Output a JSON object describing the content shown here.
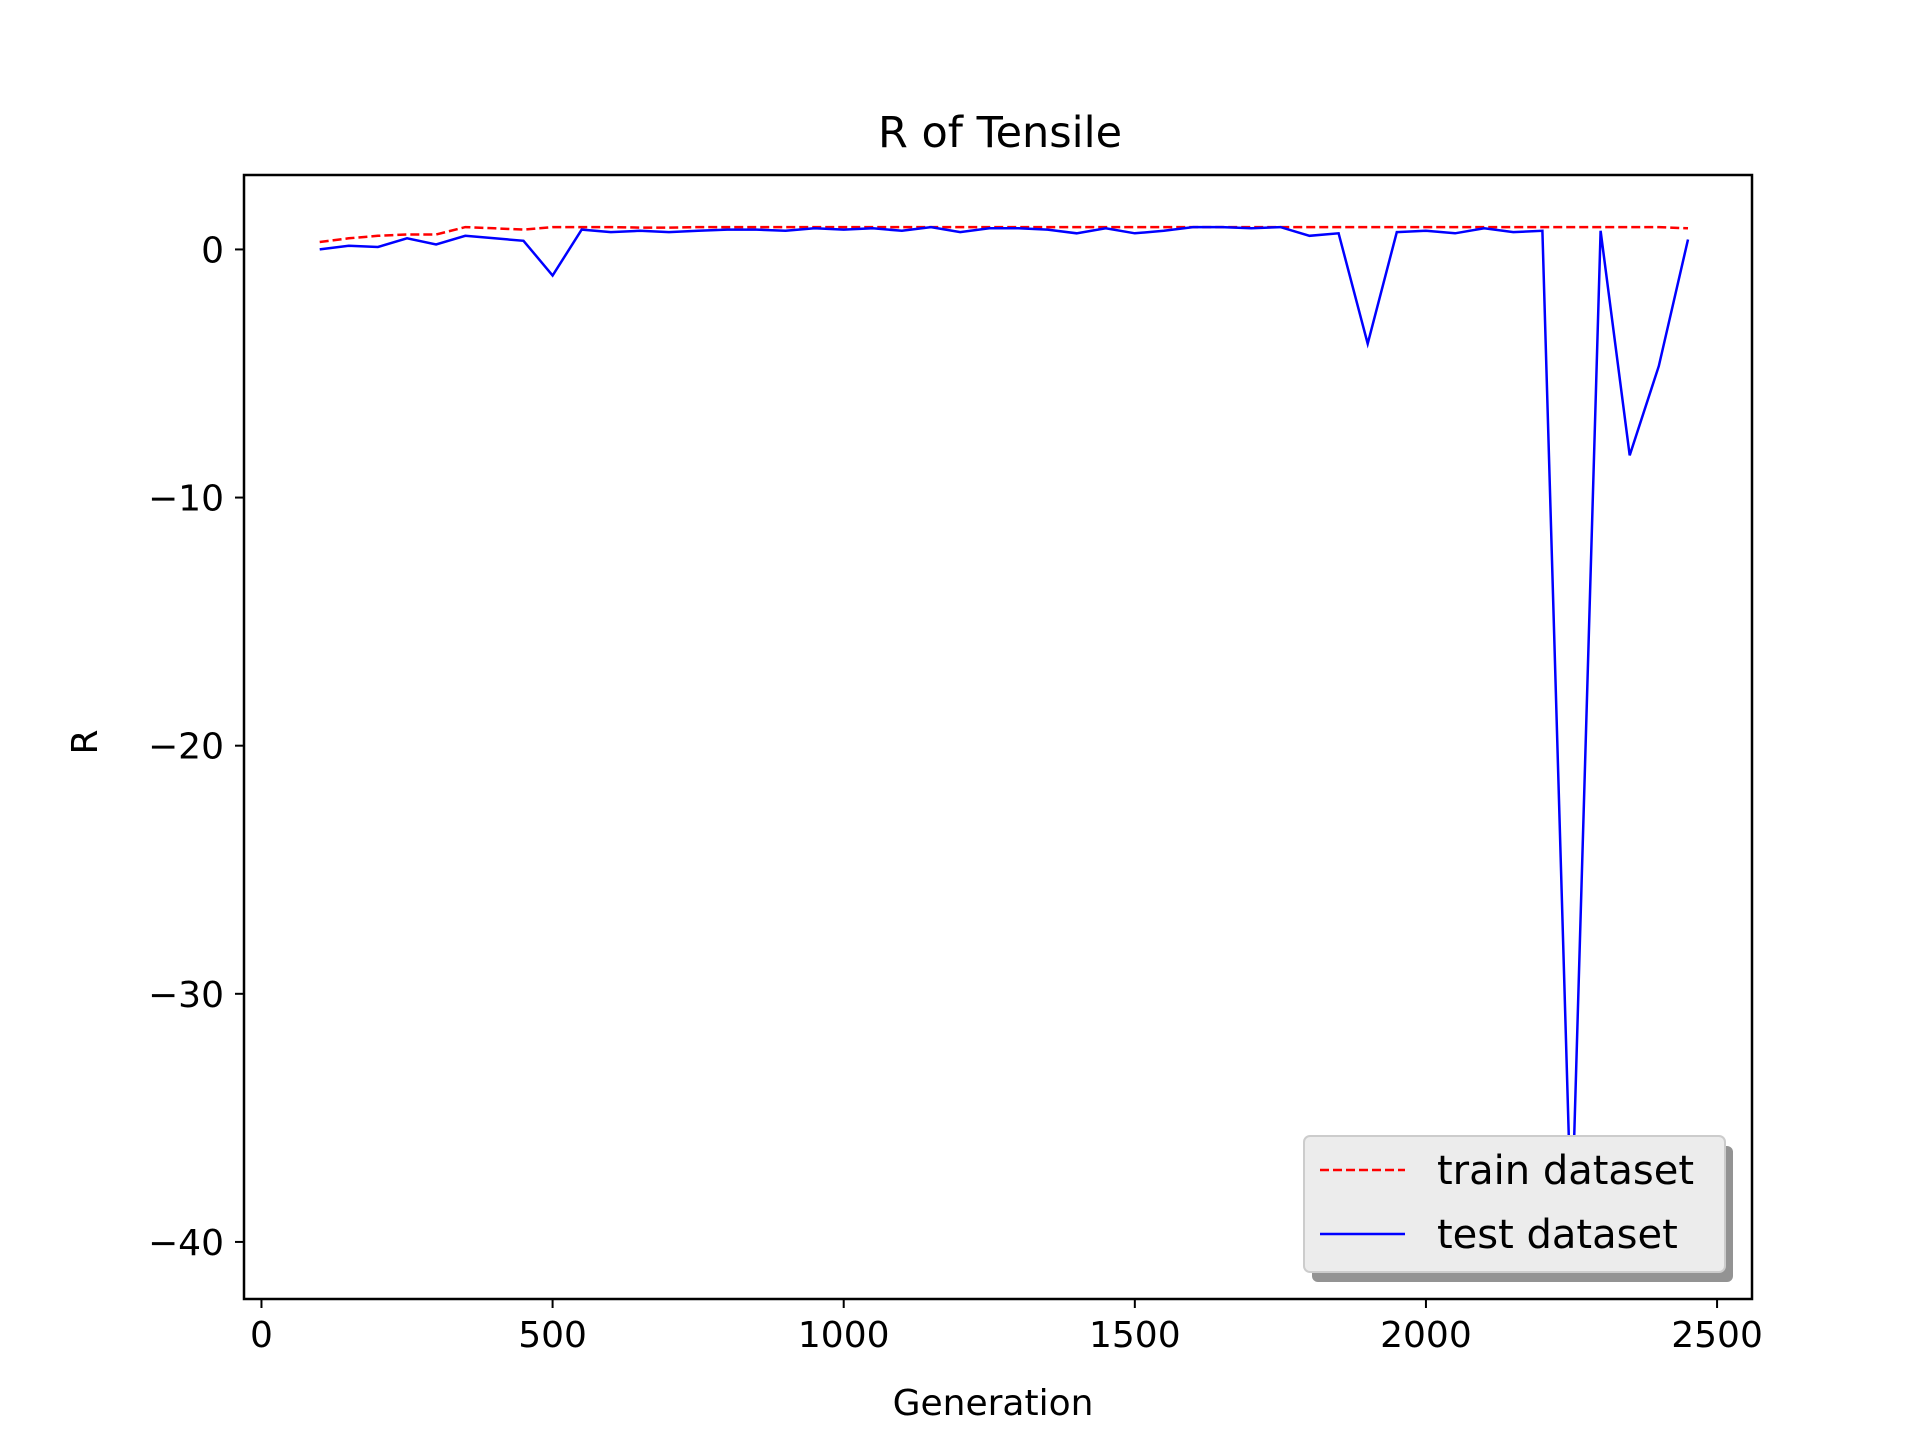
{
  "chart_data": {
    "type": "line",
    "title": "R of Tensile",
    "xlabel": "Generation",
    "ylabel": "R",
    "xlim": [
      -30,
      2560
    ],
    "ylim": [
      -42.3,
      3.0
    ],
    "xticks": [
      0,
      500,
      1000,
      1500,
      2000,
      2500
    ],
    "yticks": [
      0,
      -10,
      -20,
      -30,
      -40
    ],
    "xtick_labels": [
      "0",
      "500",
      "1000",
      "1500",
      "2000",
      "2500"
    ],
    "ytick_labels": [
      "0",
      "−10",
      "−20",
      "−30",
      "−40"
    ],
    "grid": false,
    "legend_position": "lower-right",
    "x": [
      100,
      150,
      200,
      250,
      300,
      350,
      400,
      450,
      500,
      550,
      600,
      650,
      700,
      750,
      800,
      850,
      900,
      950,
      1000,
      1050,
      1100,
      1150,
      1200,
      1250,
      1300,
      1350,
      1400,
      1450,
      1500,
      1550,
      1600,
      1650,
      1700,
      1750,
      1800,
      1850,
      1900,
      1950,
      2000,
      2050,
      2100,
      2150,
      2200,
      2250,
      2300,
      2350,
      2400,
      2450
    ],
    "series": [
      {
        "name": "train dataset",
        "color": "#ff0000",
        "dash": "dashed",
        "values": [
          0.3,
          0.45,
          0.55,
          0.6,
          0.6,
          0.9,
          0.85,
          0.8,
          0.9,
          0.9,
          0.9,
          0.88,
          0.88,
          0.9,
          0.9,
          0.9,
          0.9,
          0.9,
          0.9,
          0.9,
          0.9,
          0.9,
          0.9,
          0.9,
          0.9,
          0.9,
          0.9,
          0.9,
          0.9,
          0.9,
          0.9,
          0.9,
          0.9,
          0.9,
          0.9,
          0.9,
          0.9,
          0.9,
          0.9,
          0.9,
          0.9,
          0.9,
          0.9,
          0.9,
          0.9,
          0.9,
          0.9,
          0.85
        ]
      },
      {
        "name": "test dataset",
        "color": "#0000ff",
        "dash": "solid",
        "values": [
          0.0,
          0.15,
          0.1,
          0.45,
          0.2,
          0.55,
          0.45,
          0.35,
          -1.05,
          0.8,
          0.7,
          0.75,
          0.7,
          0.75,
          0.8,
          0.8,
          0.75,
          0.85,
          0.8,
          0.85,
          0.75,
          0.9,
          0.7,
          0.85,
          0.85,
          0.8,
          0.65,
          0.85,
          0.65,
          0.75,
          0.9,
          0.9,
          0.85,
          0.9,
          0.55,
          0.65,
          -3.8,
          0.7,
          0.75,
          0.65,
          0.85,
          0.7,
          0.75,
          -39.5,
          0.75,
          -8.3,
          -4.7,
          0.4
        ]
      }
    ]
  }
}
